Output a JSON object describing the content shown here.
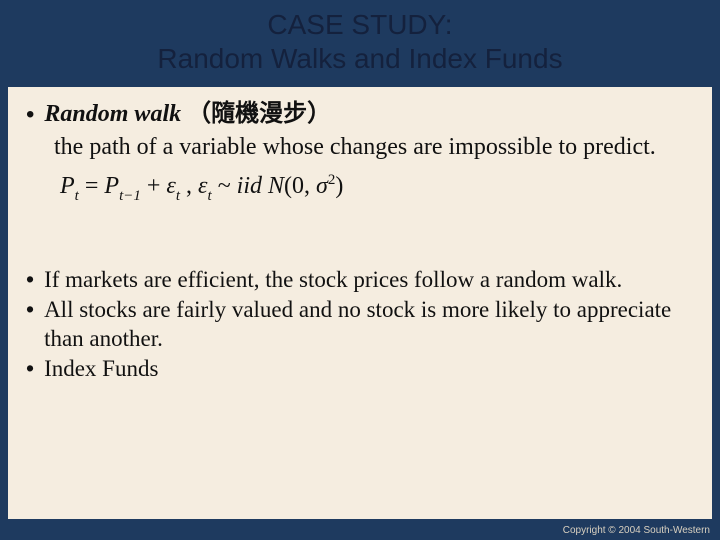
{
  "colors": {
    "background": "#1e3a5f",
    "content_bg": "#f5ede0",
    "title_text": "#14213d",
    "body_text": "#111111",
    "copyright_text": "#d8d0c0"
  },
  "title": {
    "line1": "CASE STUDY:",
    "line2": "Random Walks and Index Funds"
  },
  "block1": {
    "term": "Random walk",
    "term_cjk": "（隨機漫步）",
    "definition": "the path of a variable whose changes are impossible to predict."
  },
  "equation": {
    "lhs_var": "P",
    "lhs_sub": "t",
    "eq": " = ",
    "r1_var": "P",
    "r1_sub": "t−1",
    "plus": " + ",
    "eps": "ε",
    "eps_sub": "t",
    "comma": " ,    ",
    "eps2": "ε",
    "eps2_sub": "t",
    "tilde": " ~ ",
    "iid": "iid ",
    "dist": "N",
    "open": "(0, ",
    "sigma": "σ",
    "sigma_sup": "2",
    "close": ")"
  },
  "block2": {
    "b1": "If markets are efficient, the stock prices follow a random walk.",
    "b2": "All stocks are fairly valued and no stock is more likely to appreciate than another.",
    "b3": "Index Funds"
  },
  "copyright": "Copyright © 2004  South-Western"
}
